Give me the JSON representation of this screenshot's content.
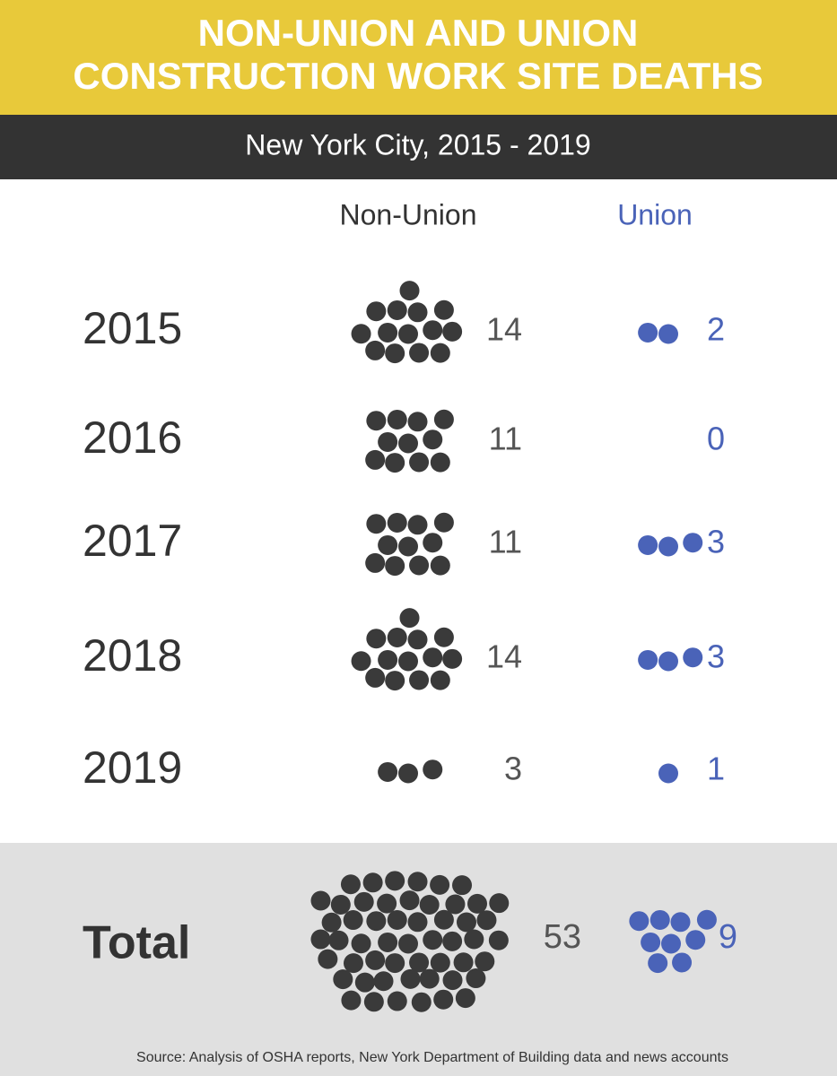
{
  "chart_data": {
    "type": "dot",
    "title": [
      "NON-UNION AND UNION",
      "CONSTRUCTION WORK SITE DEATHS"
    ],
    "subtitle": "New York City, 2015 - 2019",
    "categories": [
      "2015",
      "2016",
      "2017",
      "2018",
      "2019"
    ],
    "series": [
      {
        "name": "Non-Union",
        "color": "#3a3a3a",
        "values": [
          14,
          11,
          11,
          14,
          3
        ]
      },
      {
        "name": "Union",
        "color": "#4a63b8",
        "values": [
          2,
          0,
          3,
          3,
          1
        ]
      }
    ],
    "total": {
      "label": "Total",
      "values": [
        53,
        9
      ]
    },
    "source": "Source: Analysis of OSHA reports, New York Department of Building data and news accounts"
  }
}
